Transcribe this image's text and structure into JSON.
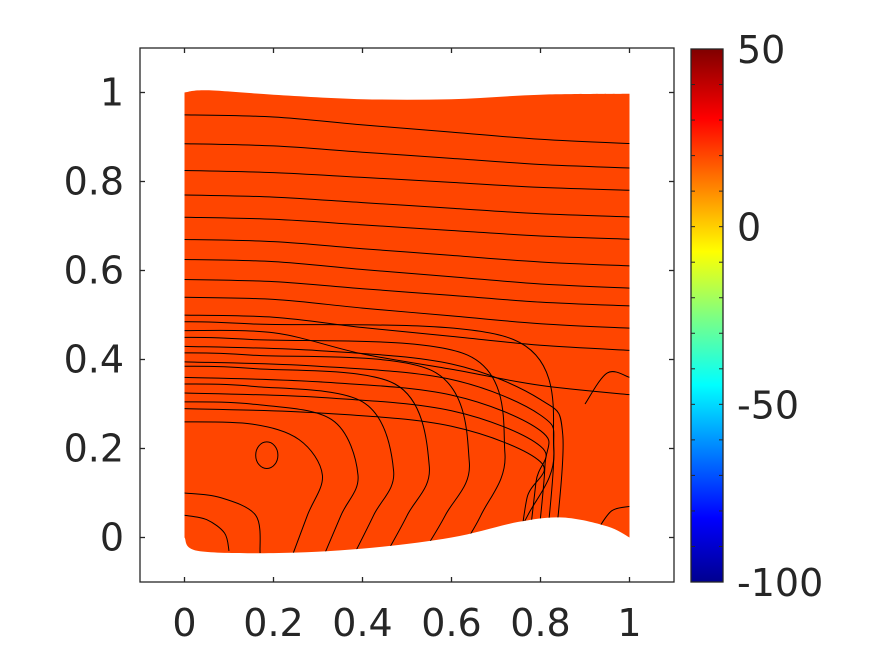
{
  "chart_data": {
    "type": "contour",
    "title": "",
    "xlabel": "",
    "ylabel": "",
    "xlim": [
      -0.1,
      1.1
    ],
    "ylim": [
      -0.1,
      1.1
    ],
    "x_ticks": [
      0,
      0.2,
      0.4,
      0.6,
      0.8,
      1
    ],
    "x_tick_labels": [
      "0",
      "0.2",
      "0.4",
      "0.6",
      "0.8",
      "1"
    ],
    "y_ticks": [
      0,
      0.2,
      0.4,
      0.6,
      0.8,
      1
    ],
    "y_tick_labels": [
      "0",
      "0.2",
      "0.4",
      "0.6",
      "0.8",
      "1"
    ],
    "colorbar": {
      "colormap": "jet",
      "range": [
        -100,
        50
      ],
      "ticks": [
        50,
        0,
        -50,
        -100
      ],
      "tick_labels": [
        "50",
        "0",
        "-50",
        "-100"
      ]
    },
    "field_color": "#ff4500",
    "contour_line_color": "#000000",
    "domain_boundary": {
      "top": [
        [
          0,
          1.0
        ],
        [
          0.05,
          1.005
        ],
        [
          0.2,
          0.995
        ],
        [
          0.4,
          0.985
        ],
        [
          0.6,
          0.985
        ],
        [
          0.8,
          0.995
        ],
        [
          1.0,
          0.997
        ]
      ],
      "bottom": [
        [
          0,
          0.0
        ],
        [
          0.03,
          -0.03
        ],
        [
          0.2,
          -0.035
        ],
        [
          0.4,
          -0.025
        ],
        [
          0.6,
          0.0
        ],
        [
          0.75,
          0.035
        ],
        [
          0.85,
          0.045
        ],
        [
          0.95,
          0.025
        ],
        [
          1.0,
          0.0
        ]
      ]
    },
    "horizontal_contours_y_at_left": [
      0.95,
      0.885,
      0.825,
      0.77,
      0.72,
      0.67,
      0.625,
      0.58,
      0.54,
      0.5,
      0.465,
      0.43,
      0.395,
      0.36,
      0.325,
      0.29
    ],
    "horizontal_contours_y_at_right": [
      0.885,
      0.83,
      0.78,
      0.72,
      0.67,
      0.61,
      0.56,
      0.52,
      0.47,
      0.42,
      0.32
    ],
    "arch_contours": [
      {
        "x_bottom": 0.235,
        "x_nose": 0.31,
        "y_nose": 0.14,
        "y_top": 0.26
      },
      {
        "x_bottom": 0.305,
        "x_nose": 0.39,
        "y_nose": 0.14,
        "y_top": 0.305
      },
      {
        "x_bottom": 0.37,
        "x_nose": 0.47,
        "y_nose": 0.15,
        "y_top": 0.345
      },
      {
        "x_bottom": 0.44,
        "x_nose": 0.55,
        "y_nose": 0.16,
        "y_top": 0.385
      },
      {
        "x_bottom": 0.52,
        "x_nose": 0.64,
        "y_nose": 0.17,
        "y_top": 0.415
      },
      {
        "x_bottom": 0.6,
        "x_nose": 0.72,
        "y_nose": 0.19,
        "y_top": 0.45
      },
      {
        "x_bottom": 0.7,
        "x_nose": 0.83,
        "y_nose": 0.2,
        "y_top": 0.485
      }
    ],
    "island_contour": {
      "cx": 0.185,
      "cy": 0.185,
      "rx": 0.025,
      "ry": 0.03
    },
    "corner_contours": [
      {
        "corner": "bottom-left",
        "points": [
          [
            0,
            0.05
          ],
          [
            0.05,
            0.04
          ],
          [
            0.09,
            0.01
          ],
          [
            0.1,
            -0.03
          ]
        ]
      },
      {
        "corner": "bottom-left",
        "points": [
          [
            0,
            0.1
          ],
          [
            0.08,
            0.09
          ],
          [
            0.16,
            0.05
          ],
          [
            0.17,
            -0.035
          ]
        ]
      },
      {
        "corner": "bottom-right",
        "points": [
          [
            0.93,
            0.02
          ],
          [
            0.96,
            0.06
          ],
          [
            1.0,
            0.07
          ]
        ]
      },
      {
        "corner": "right",
        "points": [
          [
            0.9,
            0.3
          ],
          [
            0.95,
            0.37
          ],
          [
            1.0,
            0.36
          ]
        ]
      }
    ]
  }
}
